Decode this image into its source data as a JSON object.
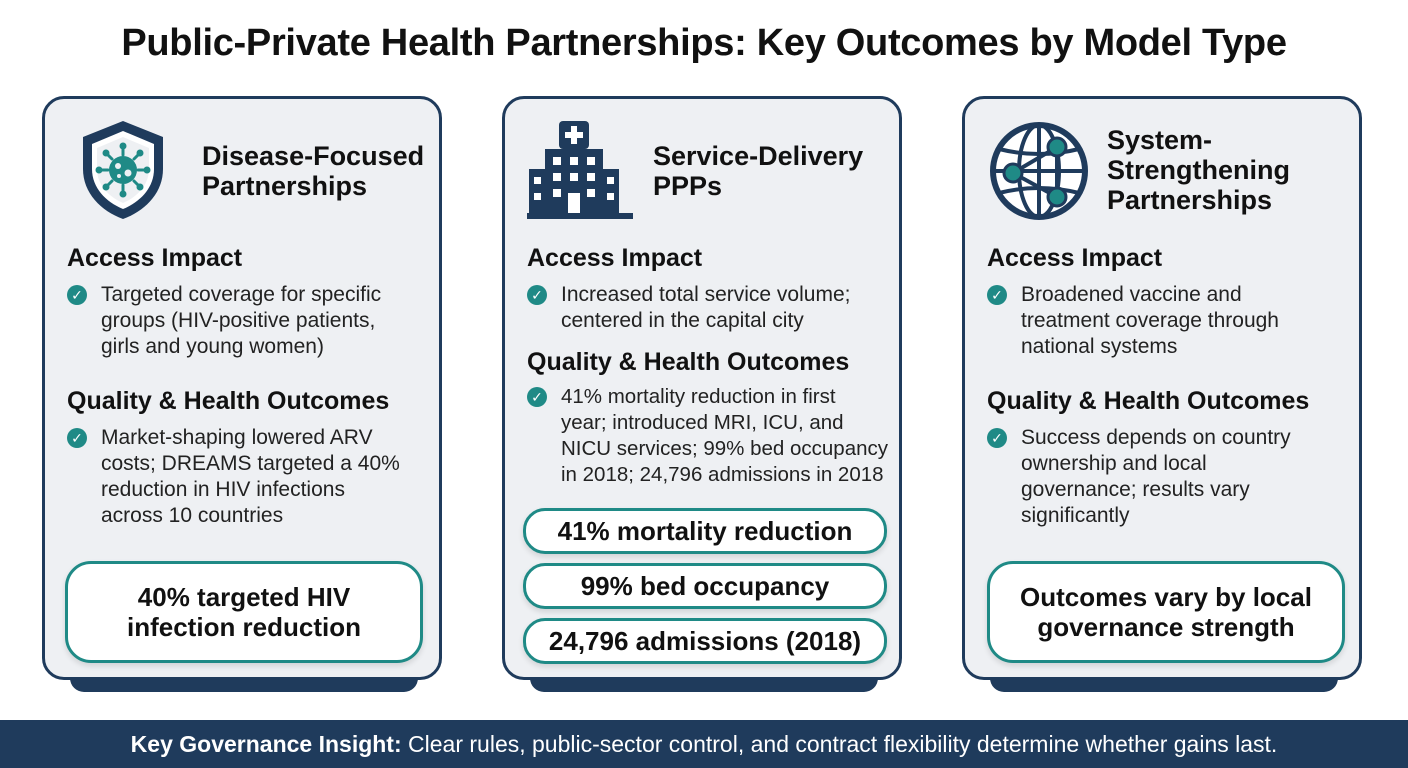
{
  "title": "Public-Private Health Partnerships: Key Outcomes by Model Type",
  "colors": {
    "navy": "#1f3b5c",
    "teal": "#1f8a86",
    "card_bg": "#eef0f3"
  },
  "cards": [
    {
      "icon": "shield-virus-icon",
      "title_line1": "Disease-Focused",
      "title_line2": "Partnerships",
      "access_heading": "Access Impact",
      "access_text": "Targeted coverage for specific\ngroups (HIV-positive patients,\ngirls and young women)",
      "quality_heading": "Quality & Health Outcomes",
      "quality_text": "Market-shaping lowered ARV\ncosts; DREAMS targeted a 40%\nreduction in HIV infections\nacross 10 countries",
      "highlights": [
        "40% targeted HIV\ninfection reduction"
      ]
    },
    {
      "icon": "hospital-icon",
      "title_line1": "Service-Delivery",
      "title_line2": "PPPs",
      "access_heading": "Access Impact",
      "access_text": "Increased total service volume;\ncentered in the capital city",
      "quality_heading": "Quality & Health Outcomes",
      "quality_text": "41% mortality reduction in first\nyear; introduced MRI, ICU, and\nNICU services; 99% bed occupancy\nin 2018; 24,796 admissions in 2018",
      "highlights": [
        "41% mortality reduction",
        "99% bed occupancy",
        "24,796 admissions (2018)"
      ]
    },
    {
      "icon": "globe-network-icon",
      "title_line1": "System-",
      "title_line2": "Strengthening",
      "title_line3": "Partnerships",
      "access_heading": "Access Impact",
      "access_text": "Broadened vaccine and\ntreatment coverage through\nnational systems",
      "quality_heading": "Quality & Health Outcomes",
      "quality_text": "Success depends on country\nownership and local\ngovernance; results vary\nsignificantly",
      "highlights": [
        "Outcomes vary by local\ngovernance strength"
      ]
    }
  ],
  "footer": {
    "label": "Key Governance Insight:",
    "text": " Clear rules, public-sector control, and contract flexibility determine whether gains last."
  }
}
